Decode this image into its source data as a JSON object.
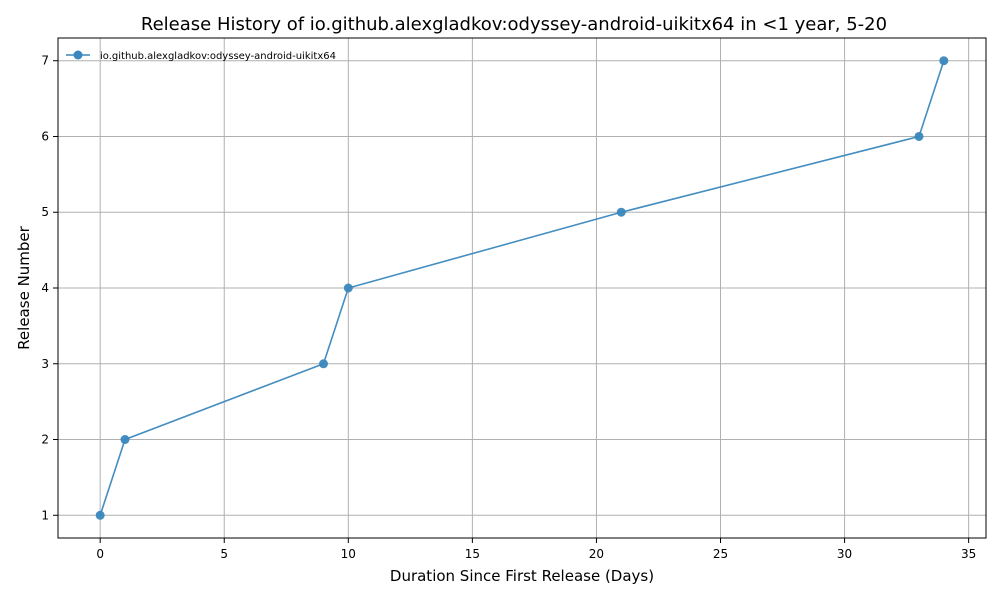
{
  "chart_data": {
    "type": "line",
    "title": "Release History of io.github.alexgladkov:odyssey-android-uikitx64 in <1 year, 5-20",
    "xlabel": "Duration Since First Release (Days)",
    "ylabel": "Release Number",
    "xlim": [
      -1.7,
      35.7
    ],
    "ylim": [
      0.7,
      7.3
    ],
    "xticks": [
      0,
      5,
      10,
      15,
      20,
      25,
      30,
      35
    ],
    "yticks": [
      1,
      2,
      3,
      4,
      5,
      6,
      7
    ],
    "grid": true,
    "legend_position": "top-left",
    "series": [
      {
        "name": "io.github.alexgladkov:odyssey-android-uikitx64",
        "color": "#3a87bd",
        "marker": "circle",
        "x": [
          0,
          1,
          9,
          10,
          21,
          33,
          34
        ],
        "y": [
          1,
          2,
          3,
          4,
          5,
          6,
          7
        ]
      }
    ]
  }
}
